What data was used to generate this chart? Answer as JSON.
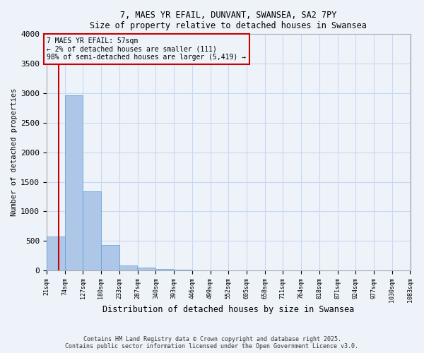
{
  "title_line1": "7, MAES YR EFAIL, DUNVANT, SWANSEA, SA2 7PY",
  "title_line2": "Size of property relative to detached houses in Swansea",
  "xlabel": "Distribution of detached houses by size in Swansea",
  "ylabel": "Number of detached properties",
  "bar_color": "#aec6e8",
  "bar_edge_color": "#5a9fd4",
  "bg_color": "#eef3fa",
  "grid_color": "#c8d8f0",
  "annotation_text": "7 MAES YR EFAIL: 57sqm\n← 2% of detached houses are smaller (111)\n98% of semi-detached houses are larger (5,419) →",
  "annotation_box_color": "#cc0000",
  "property_line_x": 57,
  "property_line_color": "#cc0000",
  "bins": [
    21,
    74,
    127,
    180,
    233,
    287,
    340,
    393,
    446,
    499,
    552,
    605,
    658,
    711,
    764,
    818,
    871,
    924,
    977,
    1030,
    1083
  ],
  "bin_labels": [
    "21sqm",
    "74sqm",
    "127sqm",
    "180sqm",
    "233sqm",
    "287sqm",
    "340sqm",
    "393sqm",
    "446sqm",
    "499sqm",
    "552sqm",
    "605sqm",
    "658sqm",
    "711sqm",
    "764sqm",
    "818sqm",
    "871sqm",
    "924sqm",
    "977sqm",
    "1030sqm",
    "1083sqm"
  ],
  "values": [
    570,
    2970,
    1340,
    430,
    90,
    55,
    25,
    10,
    5,
    3,
    2,
    2,
    1,
    1,
    1,
    1,
    0,
    0,
    0,
    0
  ],
  "ylim": [
    0,
    4000
  ],
  "yticks": [
    0,
    500,
    1000,
    1500,
    2000,
    2500,
    3000,
    3500,
    4000
  ],
  "footer_line1": "Contains HM Land Registry data © Crown copyright and database right 2025.",
  "footer_line2": "Contains public sector information licensed under the Open Government Licence v3.0."
}
